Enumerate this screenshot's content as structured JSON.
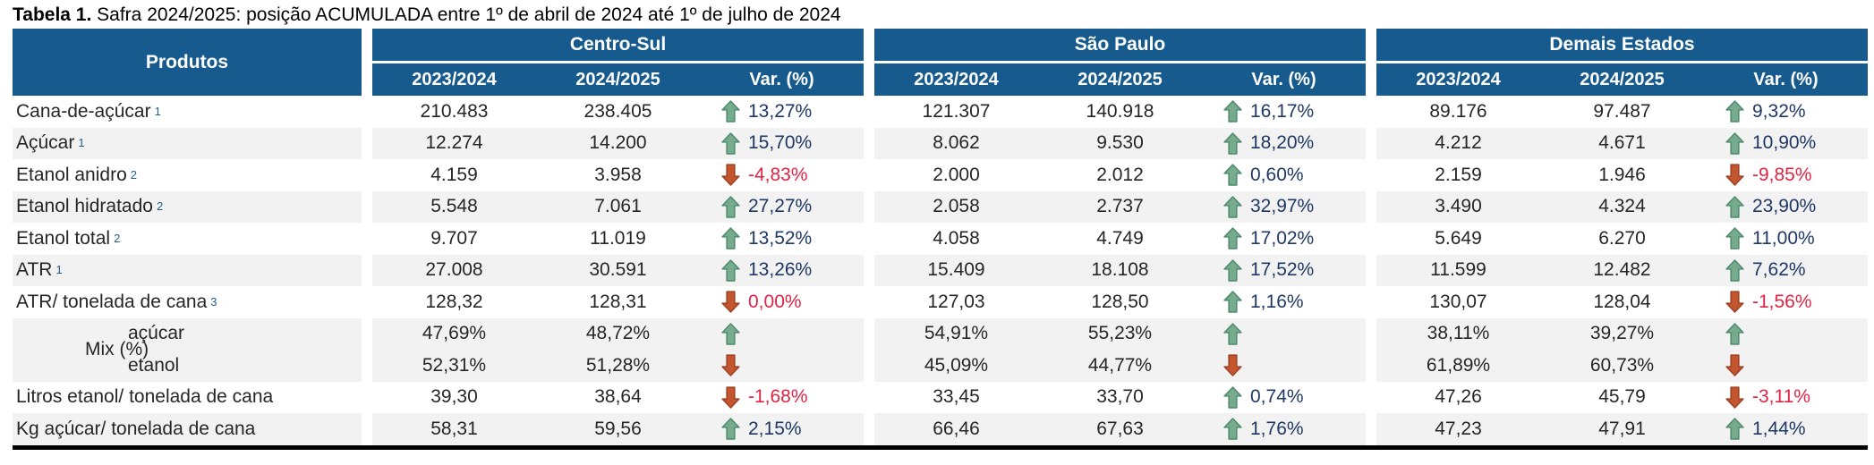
{
  "title": {
    "prefix": "Tabela 1.",
    "text": " Safra 2024/2025: posição ACUMULADA entre 1º de abril de 2024 até 1º de julho de 2024"
  },
  "colors": {
    "header_blue": "#175A8D",
    "row_stripe_gray": "#F2F2F2",
    "arrow_up_green": "#76AB8E",
    "arrow_down_red": "#C3552F",
    "positive_value_text": "#1F3864",
    "negative_value_text": "#E02444"
  },
  "table": {
    "products_header": "Produtos",
    "mix_label": "Mix (%)",
    "groups": [
      {
        "name": "Centro-Sul",
        "columns": [
          "2023/2024",
          "2024/2025",
          "Var. (%)"
        ]
      },
      {
        "name": "São Paulo",
        "columns": [
          "2023/2024",
          "2024/2025",
          "Var. (%)"
        ]
      },
      {
        "name": "Demais Estados",
        "columns": [
          "2023/2024",
          "2024/2025",
          "Var. (%)"
        ]
      }
    ],
    "rows": [
      {
        "label": "Cana-de-açúcar",
        "sup": "1",
        "cells": [
          {
            "y1": "210.483",
            "y2": "238.405",
            "dir": "up",
            "var": "13,27%"
          },
          {
            "y1": "121.307",
            "y2": "140.918",
            "dir": "up",
            "var": "16,17%"
          },
          {
            "y1": "89.176",
            "y2": "97.487",
            "dir": "up",
            "var": "9,32%"
          }
        ]
      },
      {
        "label": "Açúcar",
        "sup": "1",
        "cells": [
          {
            "y1": "12.274",
            "y2": "14.200",
            "dir": "up",
            "var": "15,70%"
          },
          {
            "y1": "8.062",
            "y2": "9.530",
            "dir": "up",
            "var": "18,20%"
          },
          {
            "y1": "4.212",
            "y2": "4.671",
            "dir": "up",
            "var": "10,90%"
          }
        ]
      },
      {
        "label": "Etanol anidro",
        "sup": "2",
        "cells": [
          {
            "y1": "4.159",
            "y2": "3.958",
            "dir": "down",
            "var": "-4,83%"
          },
          {
            "y1": "2.000",
            "y2": "2.012",
            "dir": "up",
            "var": "0,60%"
          },
          {
            "y1": "2.159",
            "y2": "1.946",
            "dir": "down",
            "var": "-9,85%"
          }
        ]
      },
      {
        "label": "Etanol hidratado",
        "sup": "2",
        "cells": [
          {
            "y1": "5.548",
            "y2": "7.061",
            "dir": "up",
            "var": "27,27%"
          },
          {
            "y1": "2.058",
            "y2": "2.737",
            "dir": "up",
            "var": "32,97%"
          },
          {
            "y1": "3.490",
            "y2": "4.324",
            "dir": "up",
            "var": "23,90%"
          }
        ]
      },
      {
        "label": "Etanol total",
        "sup": "2",
        "cells": [
          {
            "y1": "9.707",
            "y2": "11.019",
            "dir": "up",
            "var": "13,52%"
          },
          {
            "y1": "4.058",
            "y2": "4.749",
            "dir": "up",
            "var": "17,02%"
          },
          {
            "y1": "5.649",
            "y2": "6.270",
            "dir": "up",
            "var": "11,00%"
          }
        ]
      },
      {
        "label": "ATR",
        "sup": "1",
        "cells": [
          {
            "y1": "27.008",
            "y2": "30.591",
            "dir": "up",
            "var": "13,26%"
          },
          {
            "y1": "15.409",
            "y2": "18.108",
            "dir": "up",
            "var": "17,52%"
          },
          {
            "y1": "11.599",
            "y2": "12.482",
            "dir": "up",
            "var": "7,62%"
          }
        ]
      },
      {
        "label": "ATR/ tonelada de cana",
        "sup": "3",
        "cells": [
          {
            "y1": "128,32",
            "y2": "128,31",
            "dir": "down",
            "var": "0,00%"
          },
          {
            "y1": "127,03",
            "y2": "128,50",
            "dir": "up",
            "var": "1,16%"
          },
          {
            "y1": "130,07",
            "y2": "128,04",
            "dir": "down",
            "var": "-1,56%"
          }
        ]
      },
      {
        "label": "açúcar",
        "mix": true,
        "cells": [
          {
            "y1": "47,69%",
            "y2": "48,72%",
            "dir": "up",
            "var": ""
          },
          {
            "y1": "54,91%",
            "y2": "55,23%",
            "dir": "up",
            "var": ""
          },
          {
            "y1": "38,11%",
            "y2": "39,27%",
            "dir": "up",
            "var": ""
          }
        ]
      },
      {
        "label": "etanol",
        "mix": true,
        "cells": [
          {
            "y1": "52,31%",
            "y2": "51,28%",
            "dir": "down",
            "var": ""
          },
          {
            "y1": "45,09%",
            "y2": "44,77%",
            "dir": "down",
            "var": ""
          },
          {
            "y1": "61,89%",
            "y2": "60,73%",
            "dir": "down",
            "var": ""
          }
        ]
      },
      {
        "label": "Litros etanol/ tonelada de cana",
        "sup": "",
        "cells": [
          {
            "y1": "39,30",
            "y2": "38,64",
            "dir": "down",
            "var": "-1,68%"
          },
          {
            "y1": "33,45",
            "y2": "33,70",
            "dir": "up",
            "var": "0,74%"
          },
          {
            "y1": "47,26",
            "y2": "45,79",
            "dir": "down",
            "var": "-3,11%"
          }
        ]
      },
      {
        "label": "Kg açúcar/ tonelada de cana",
        "sup": "",
        "cells": [
          {
            "y1": "58,31",
            "y2": "59,56",
            "dir": "up",
            "var": "2,15%"
          },
          {
            "y1": "66,46",
            "y2": "67,63",
            "dir": "up",
            "var": "1,76%"
          },
          {
            "y1": "47,23",
            "y2": "47,91",
            "dir": "up",
            "var": "1,44%"
          }
        ]
      }
    ]
  }
}
